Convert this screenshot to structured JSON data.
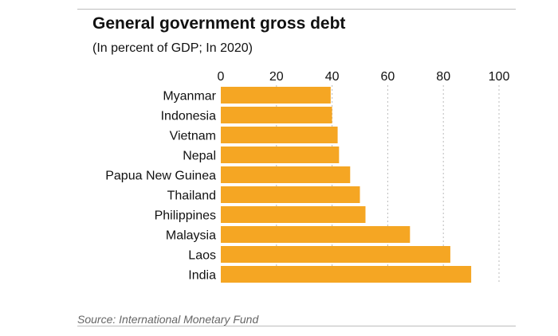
{
  "chart_data": {
    "type": "bar",
    "orientation": "horizontal",
    "title": "General government gross debt",
    "subtitle": "(In percent of GDP; In 2020)",
    "source": "Source: International Monetary Fund",
    "categories": [
      "Myanmar",
      "Indonesia",
      "Vietnam",
      "Nepal",
      "Papua New Guinea",
      "Thailand",
      "Philippines",
      "Malaysia",
      "Laos",
      "India"
    ],
    "values": [
      39.5,
      40,
      42,
      42.5,
      46.5,
      50,
      52,
      68,
      82.5,
      90
    ],
    "xlim": [
      0,
      100
    ],
    "ticks": [
      "0",
      "20",
      "40",
      "60",
      "80",
      "100"
    ],
    "tick_values": [
      0,
      20,
      40,
      60,
      80,
      100
    ],
    "xlabel": "",
    "ylabel": "",
    "grid": true,
    "axis_position": "top",
    "bar_color": "#F5A623",
    "grid_color": "#bbbbbb"
  }
}
